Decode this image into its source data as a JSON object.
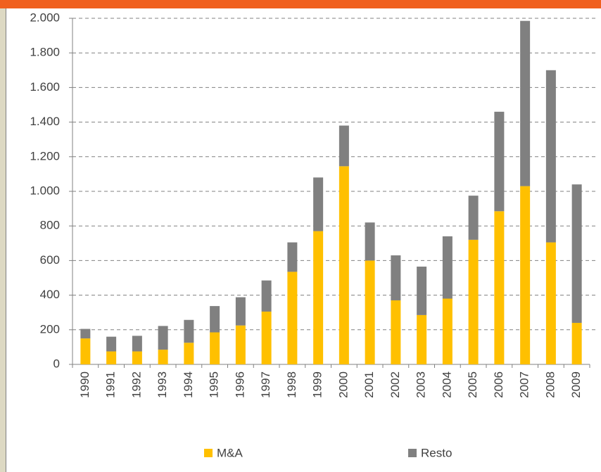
{
  "chart_data": {
    "type": "stacked-bar",
    "categories": [
      "1990",
      "1991",
      "1992",
      "1993",
      "1994",
      "1995",
      "1996",
      "1997",
      "1998",
      "1999",
      "2000",
      "2001",
      "2002",
      "2003",
      "2004",
      "2005",
      "2006",
      "2007",
      "2008",
      "2009"
    ],
    "series": [
      {
        "name": "M&A",
        "color": "#ffc000",
        "values": [
          150,
          75,
          75,
          85,
          125,
          185,
          225,
          305,
          535,
          770,
          1145,
          600,
          370,
          285,
          380,
          720,
          885,
          1030,
          705,
          240
        ]
      },
      {
        "name": "Resto",
        "color": "#808080",
        "values": [
          55,
          85,
          90,
          137,
          132,
          152,
          163,
          180,
          170,
          310,
          235,
          220,
          260,
          280,
          360,
          255,
          575,
          955,
          995,
          800
        ]
      }
    ],
    "ylim": [
      0,
      2000
    ],
    "yticks": [
      0,
      200,
      400,
      600,
      800,
      {
        "value": 1000,
        "label": "1.000"
      },
      {
        "value": 1200,
        "label": "1.200"
      },
      {
        "value": 1400,
        "label": "1.400"
      },
      {
        "value": 1600,
        "label": "1.600"
      },
      {
        "value": 1800,
        "label": "1.800"
      },
      {
        "value": 2000,
        "label": "2.000"
      }
    ],
    "grid": true,
    "legend": "bottom"
  }
}
